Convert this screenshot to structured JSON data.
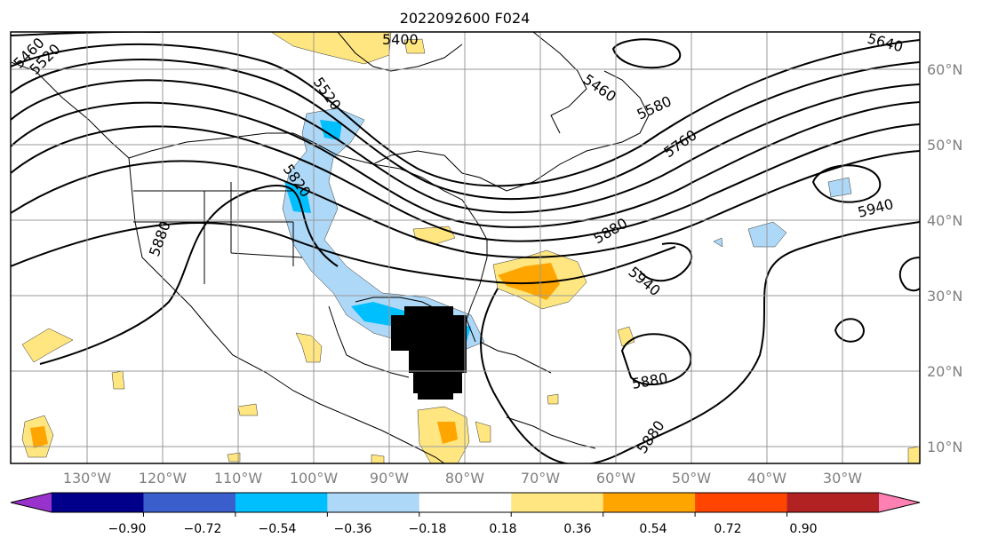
{
  "title": "2022092600 F024",
  "lat_labels": [
    "60°N",
    "50°N",
    "40°N",
    "30°N",
    "20°N",
    "10°N"
  ],
  "lon_labels": [
    "130°W",
    "120°W",
    "110°W",
    "100°W",
    "90°W",
    "80°W",
    "70°W",
    "60°W",
    "50°W",
    "40°W",
    "30°W"
  ],
  "contour_labels": [
    "5400",
    "5460",
    "5520",
    "5580",
    "5640",
    "5760",
    "5820",
    "5880",
    "5940"
  ],
  "colorbar": {
    "ticks": [
      "−0.90",
      "−0.72",
      "−0.54",
      "−0.36",
      "−0.18",
      "0.18",
      "0.36",
      "0.54",
      "0.72",
      "0.90"
    ],
    "colors": [
      "#9932cc",
      "#00008b",
      "#3a5fcd",
      "#00bfff",
      "#add8f7",
      "#ffffff",
      "#ffe680",
      "#ffa500",
      "#ff4500",
      "#b22222",
      "#ff80b3"
    ]
  }
}
